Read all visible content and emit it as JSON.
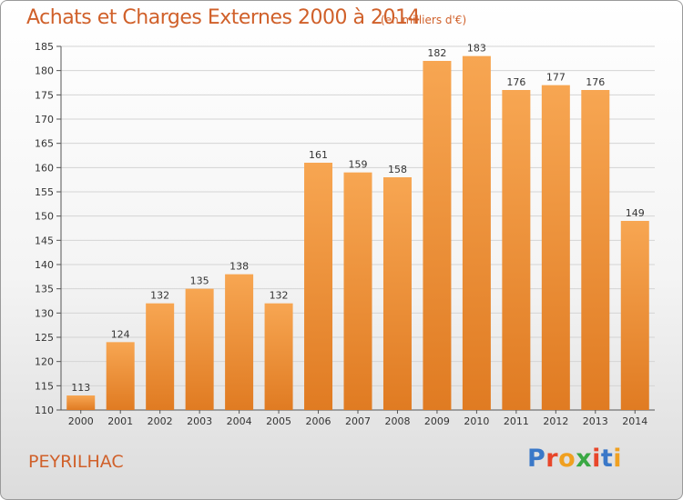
{
  "header": {
    "title": "Achats et Charges Externes 2000 à 2014",
    "subtitle": "(en milliers d'€)"
  },
  "footer": {
    "commune": "PEYRILHAC",
    "logo": {
      "text": "Proxiti",
      "letter_colors": [
        "#3a78c8",
        "#e8462a",
        "#f0a020",
        "#3aa844",
        "#e8462a",
        "#3a78c8",
        "#f0a020"
      ]
    }
  },
  "chart_data": {
    "type": "bar",
    "categories": [
      "2000",
      "2001",
      "2002",
      "2003",
      "2004",
      "2005",
      "2006",
      "2007",
      "2008",
      "2009",
      "2010",
      "2011",
      "2012",
      "2013",
      "2014"
    ],
    "values": [
      113,
      124,
      132,
      135,
      138,
      132,
      161,
      159,
      158,
      182,
      183,
      176,
      177,
      176,
      149
    ],
    "data_labels": [
      "113",
      "124",
      "132",
      "135",
      "138",
      "132",
      "161",
      "159",
      "158",
      "182",
      "183",
      "176",
      "177",
      "176",
      "149"
    ],
    "ylim": [
      110,
      185
    ],
    "yticks": [
      110,
      115,
      120,
      125,
      130,
      135,
      140,
      145,
      150,
      155,
      160,
      165,
      170,
      175,
      180,
      185
    ],
    "grid": true,
    "colors": {
      "bar_top": "#f7a652",
      "bar_bottom": "#e07b22",
      "grid": "#d4d4d4"
    }
  }
}
